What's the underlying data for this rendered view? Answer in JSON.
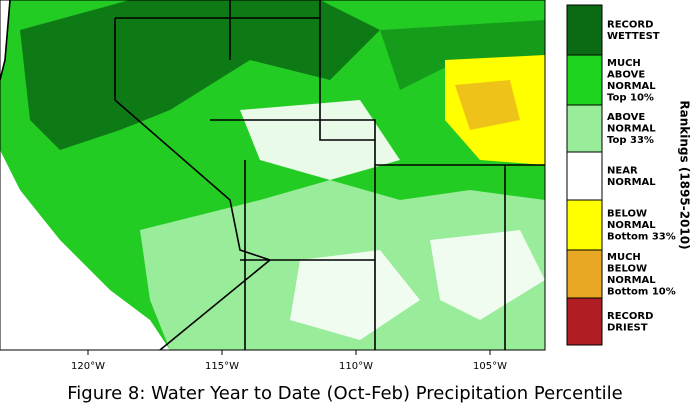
{
  "map": {
    "legend": {
      "title": "Rankings (1895-2010)",
      "entries": [
        {
          "lines": [
            "RECORD",
            "WETTEST"
          ],
          "color": "#0a6b14"
        },
        {
          "lines": [
            "MUCH",
            "ABOVE",
            "NORMAL",
            "Top 10%"
          ],
          "color": "#1ed41e"
        },
        {
          "lines": [
            "ABOVE",
            "NORMAL",
            "Top 33%"
          ],
          "color": "#99ec99"
        },
        {
          "lines": [
            "NEAR",
            "NORMAL"
          ],
          "color": "#ffffff"
        },
        {
          "lines": [
            "BELOW",
            "NORMAL",
            "Bottom 33%"
          ],
          "color": "#ffff00"
        },
        {
          "lines": [
            "MUCH",
            "BELOW",
            "NORMAL",
            "Bottom 10%"
          ],
          "color": "#e8a824"
        },
        {
          "lines": [
            "RECORD",
            "DRIEST"
          ],
          "color": "#b01e23"
        }
      ]
    },
    "longitude_labels": [
      "120°W",
      "115°W",
      "110°W",
      "105°W"
    ],
    "caption": "Figure 8: Water Year to Date (Oct-Feb) Precipitation Percentile"
  }
}
